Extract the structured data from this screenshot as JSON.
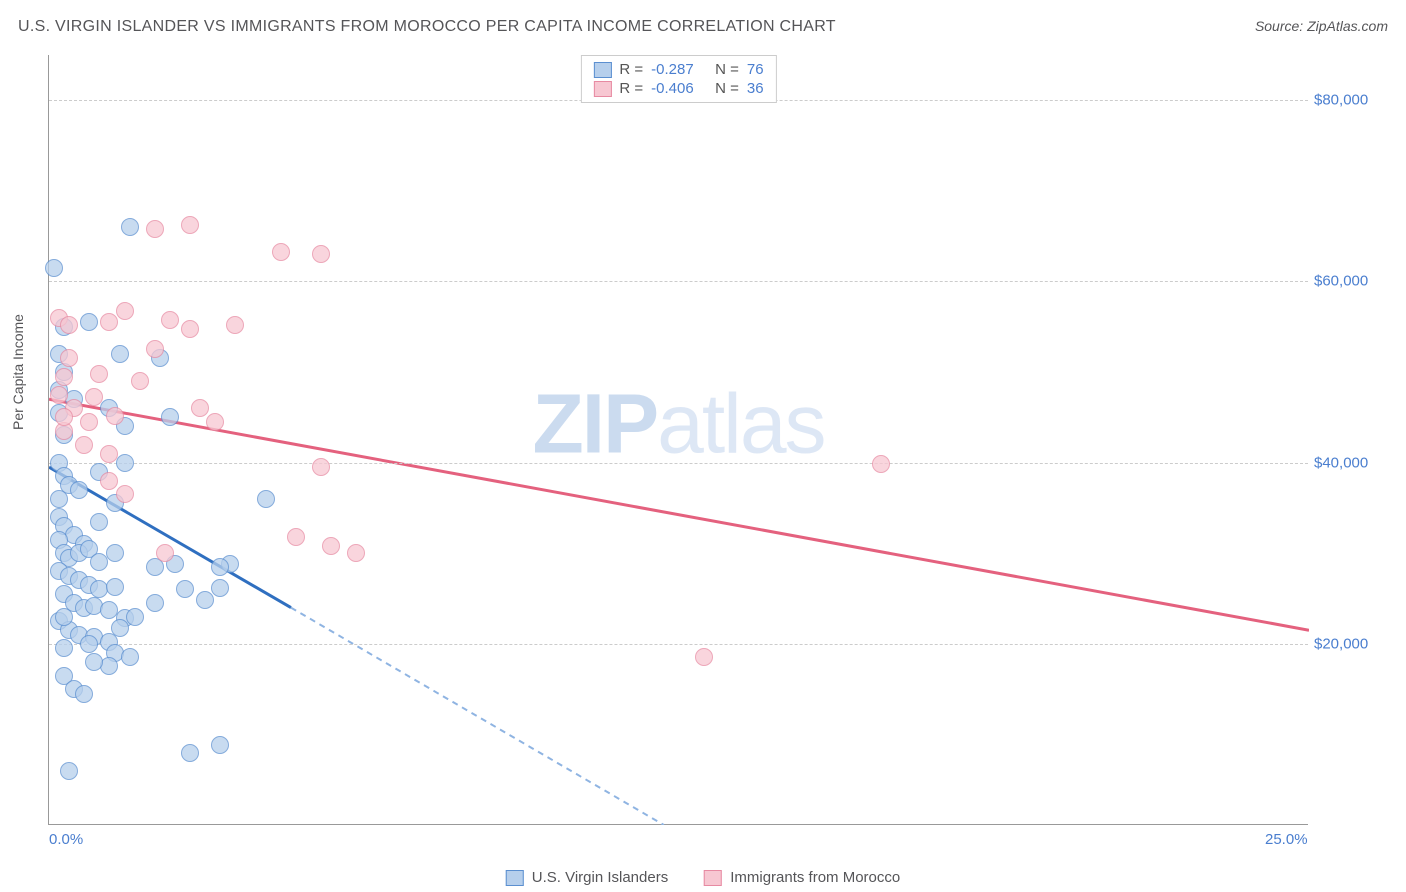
{
  "title": "U.S. VIRGIN ISLANDER VS IMMIGRANTS FROM MOROCCO PER CAPITA INCOME CORRELATION CHART",
  "source_prefix": "Source: ",
  "source": "ZipAtlas.com",
  "ylabel": "Per Capita Income",
  "watermark": {
    "bold": "ZIP",
    "light": "atlas"
  },
  "chart": {
    "type": "scatter",
    "xlim": [
      0,
      25
    ],
    "ylim": [
      0,
      85000
    ],
    "background_color": "#ffffff",
    "grid_color": "#cccccc",
    "axis_color": "#999999",
    "yticks": [
      {
        "v": 20000,
        "label": "$20,000"
      },
      {
        "v": 40000,
        "label": "$40,000"
      },
      {
        "v": 60000,
        "label": "$60,000"
      },
      {
        "v": 80000,
        "label": "$80,000"
      }
    ],
    "xticks": [
      {
        "v": 0,
        "label": "0.0%"
      },
      {
        "v": 25,
        "label": "25.0%"
      }
    ],
    "point_radius": 9,
    "point_stroke_width": 1,
    "series": [
      {
        "key": "usvi",
        "name": "U.S. Virgin Islanders",
        "fill": "#b6cfec",
        "stroke": "#5b8fd0",
        "fill_opacity": 0.75,
        "stats": {
          "R": "-0.287",
          "N": "76"
        },
        "trend": {
          "color_solid": "#2f6fc0",
          "color_dashed": "#8fb4e2",
          "width": 3,
          "dash": "6,5",
          "solid": {
            "x1": 0,
            "y1": 39500,
            "x2": 4.8,
            "y2": 24000
          },
          "dashed": {
            "x1": 4.8,
            "y1": 24000,
            "x2": 12.2,
            "y2": 0
          }
        },
        "points": [
          [
            0.1,
            61500
          ],
          [
            1.6,
            66000
          ],
          [
            0.3,
            55000
          ],
          [
            0.8,
            55500
          ],
          [
            0.2,
            52000
          ],
          [
            0.3,
            50000
          ],
          [
            0.2,
            48000
          ],
          [
            0.5,
            47000
          ],
          [
            0.2,
            45500
          ],
          [
            1.2,
            46000
          ],
          [
            1.5,
            44000
          ],
          [
            0.3,
            43000
          ],
          [
            1.4,
            52000
          ],
          [
            2.2,
            51500
          ],
          [
            0.2,
            40000
          ],
          [
            0.3,
            38500
          ],
          [
            0.4,
            37500
          ],
          [
            0.2,
            36000
          ],
          [
            0.6,
            37000
          ],
          [
            1.0,
            39000
          ],
          [
            1.3,
            35500
          ],
          [
            1.5,
            40000
          ],
          [
            0.2,
            34000
          ],
          [
            0.3,
            33000
          ],
          [
            0.5,
            32000
          ],
          [
            0.7,
            31000
          ],
          [
            0.2,
            31500
          ],
          [
            0.3,
            30000
          ],
          [
            0.4,
            29500
          ],
          [
            0.6,
            30000
          ],
          [
            0.8,
            30500
          ],
          [
            1.0,
            29000
          ],
          [
            1.3,
            30000
          ],
          [
            0.2,
            28000
          ],
          [
            0.4,
            27500
          ],
          [
            0.6,
            27000
          ],
          [
            0.8,
            26500
          ],
          [
            1.0,
            26000
          ],
          [
            1.3,
            26300
          ],
          [
            2.1,
            28500
          ],
          [
            2.5,
            28800
          ],
          [
            3.6,
            28800
          ],
          [
            0.3,
            25500
          ],
          [
            0.5,
            24500
          ],
          [
            0.7,
            24000
          ],
          [
            0.9,
            24200
          ],
          [
            1.2,
            23700
          ],
          [
            1.5,
            22800
          ],
          [
            2.1,
            24500
          ],
          [
            2.7,
            26000
          ],
          [
            3.4,
            26200
          ],
          [
            4.3,
            36000
          ],
          [
            0.2,
            22500
          ],
          [
            0.4,
            21500
          ],
          [
            0.6,
            21000
          ],
          [
            0.9,
            20800
          ],
          [
            1.2,
            20200
          ],
          [
            1.4,
            21800
          ],
          [
            1.7,
            23000
          ],
          [
            3.1,
            24800
          ],
          [
            3.4,
            28500
          ],
          [
            0.3,
            19500
          ],
          [
            0.8,
            20000
          ],
          [
            1.3,
            19000
          ],
          [
            1.6,
            18500
          ],
          [
            1.2,
            17500
          ],
          [
            0.9,
            18000
          ],
          [
            0.3,
            16500
          ],
          [
            0.5,
            15000
          ],
          [
            0.7,
            14500
          ],
          [
            3.4,
            8800
          ],
          [
            2.8,
            8000
          ],
          [
            0.4,
            6000
          ],
          [
            0.3,
            23000
          ],
          [
            1.0,
            33500
          ],
          [
            2.4,
            45000
          ]
        ]
      },
      {
        "key": "morocco",
        "name": "Immigrants from Morocco",
        "fill": "#f7c7d2",
        "stroke": "#e78aa2",
        "fill_opacity": 0.75,
        "stats": {
          "R": "-0.406",
          "N": "36"
        },
        "trend": {
          "color_solid": "#e4617e",
          "width": 3,
          "solid": {
            "x1": 0,
            "y1": 47000,
            "x2": 25,
            "y2": 21500
          }
        },
        "points": [
          [
            2.8,
            66200
          ],
          [
            2.1,
            65800
          ],
          [
            5.4,
            63000
          ],
          [
            0.2,
            56000
          ],
          [
            0.4,
            55200
          ],
          [
            0.3,
            49500
          ],
          [
            1.0,
            49800
          ],
          [
            1.2,
            55500
          ],
          [
            1.5,
            56700
          ],
          [
            2.1,
            52500
          ],
          [
            2.4,
            55800
          ],
          [
            2.8,
            54800
          ],
          [
            3.7,
            55200
          ],
          [
            4.6,
            63200
          ],
          [
            0.2,
            47500
          ],
          [
            0.5,
            46000
          ],
          [
            0.8,
            44500
          ],
          [
            1.3,
            45200
          ],
          [
            0.3,
            43500
          ],
          [
            0.7,
            42000
          ],
          [
            1.2,
            41000
          ],
          [
            3.0,
            46000
          ],
          [
            3.3,
            44500
          ],
          [
            1.2,
            38000
          ],
          [
            1.5,
            36500
          ],
          [
            2.3,
            30000
          ],
          [
            5.4,
            39500
          ],
          [
            4.9,
            31800
          ],
          [
            5.6,
            30800
          ],
          [
            6.1,
            30000
          ],
          [
            16.5,
            39800
          ],
          [
            13.0,
            18500
          ],
          [
            0.4,
            51500
          ],
          [
            0.9,
            47200
          ],
          [
            1.8,
            49000
          ],
          [
            0.3,
            45000
          ]
        ]
      }
    ]
  },
  "stats_box": {
    "r_label": "R =",
    "n_label": "N ="
  }
}
